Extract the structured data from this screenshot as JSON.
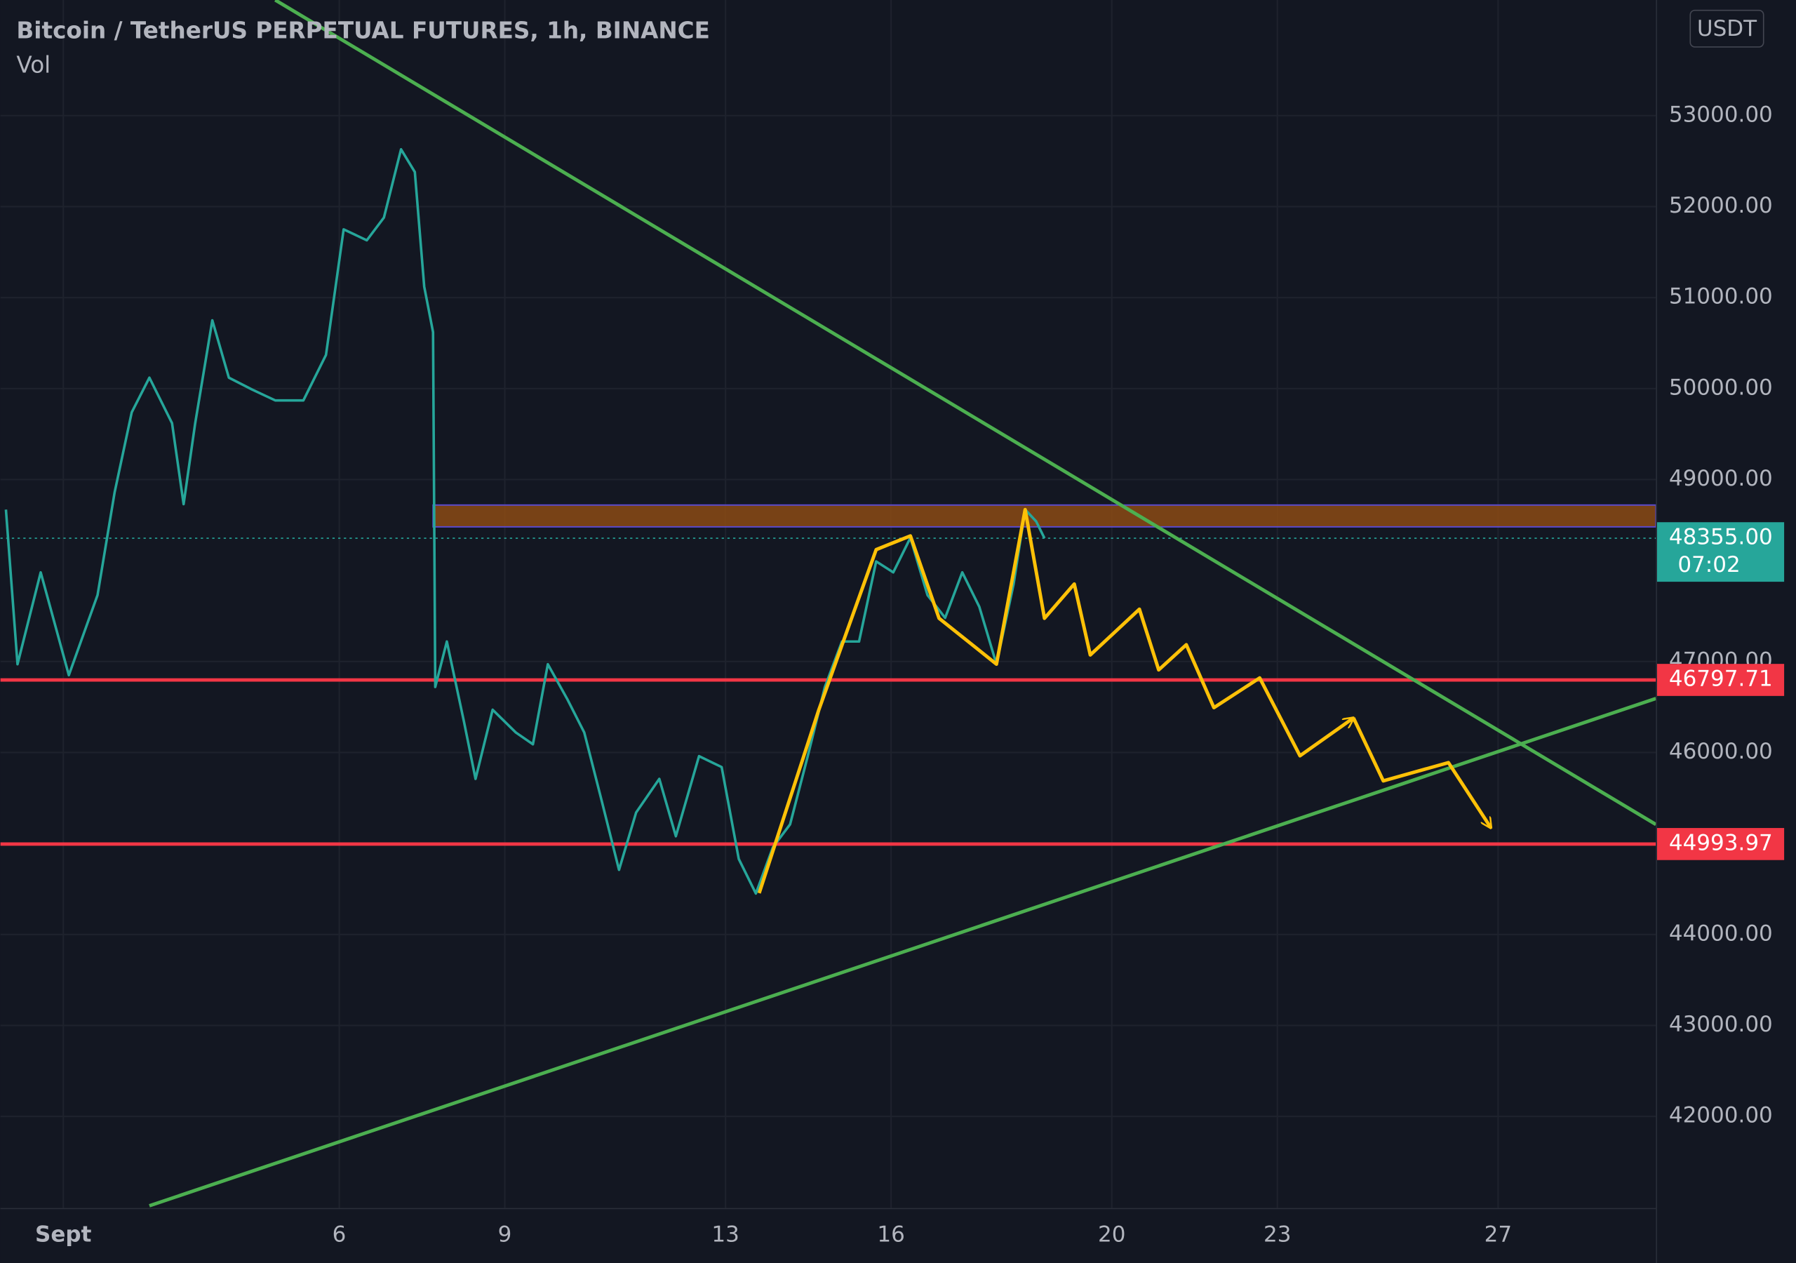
{
  "chart_data": {
    "type": "line",
    "title": "Bitcoin / TetherUS PERPETUAL FUTURES, 1h, BINANCE",
    "indicator": "Vol",
    "currency": "USDT",
    "x": [
      -0.04,
      0.17,
      0.59,
      1.1,
      1.62,
      1.93,
      2.24,
      2.56,
      2.97,
      3.18,
      3.39,
      3.7,
      4.0,
      4.42,
      4.84,
      5.35,
      5.76,
      6.08,
      6.5,
      6.81,
      7.12,
      7.37,
      7.54,
      7.7,
      7.74,
      7.95,
      8.26,
      8.47,
      8.78,
      9.2,
      9.51,
      9.78,
      10.13,
      10.44,
      10.76,
      11.07,
      11.38,
      11.8,
      12.1,
      12.52,
      12.93,
      13.24,
      13.55,
      13.86,
      14.17,
      14.49,
      14.8,
      15.11,
      15.42,
      15.73,
      16.04,
      16.35,
      16.66,
      16.98,
      17.29,
      17.6,
      17.91,
      18.22,
      18.43,
      18.63,
      18.78
    ],
    "values": [
      48670,
      46970,
      47980,
      46850,
      47730,
      48860,
      49740,
      50120,
      49620,
      48730,
      49620,
      50750,
      50120,
      49990,
      49870,
      49870,
      50370,
      51750,
      51630,
      51880,
      52630,
      52380,
      51120,
      50620,
      46720,
      47220,
      46340,
      45710,
      46470,
      46220,
      46090,
      46970,
      46590,
      46220,
      45460,
      44710,
      45340,
      45710,
      45080,
      45960,
      45840,
      44830,
      44450,
      44960,
      45210,
      45960,
      46720,
      47220,
      47220,
      48100,
      47980,
      48360,
      47730,
      47480,
      47980,
      47600,
      46970,
      47850,
      48670,
      48540,
      48355
    ],
    "color": "#26a69a",
    "xlim": [
      -0.14,
      29.86
    ],
    "ylim": [
      40993,
      54271
    ],
    "xticks": [
      {
        "value": 1,
        "label": "Sept"
      },
      6,
      9,
      13,
      16,
      20,
      23,
      27
    ],
    "yticks": [
      {
        "value": 42000,
        "label": "42000.00"
      },
      {
        "value": 43000,
        "label": "43000.00"
      },
      {
        "value": 44000,
        "label": "44000.00"
      },
      {
        "value": 46000,
        "label": "46000.00"
      },
      {
        "value": 47000,
        "label": "47000.00"
      },
      {
        "value": 49000,
        "label": "49000.00"
      },
      {
        "value": 50000,
        "label": "50000.00"
      },
      {
        "value": 51000,
        "label": "51000.00"
      },
      {
        "value": 52000,
        "label": "52000.00"
      },
      {
        "value": 53000,
        "label": "53000.00"
      }
    ],
    "grid": true,
    "levels": [
      {
        "value": 46797.71,
        "color": "#f23645"
      },
      {
        "value": 44993.97,
        "color": "#f23645"
      }
    ],
    "last_price": {
      "value": 48355,
      "label": "48355.00",
      "countdown": "07:02",
      "color": "#26a69a"
    },
    "zone": {
      "x": 7.7,
      "low": 48480,
      "high": 48720,
      "color": "#8b4a14"
    },
    "trendlines": [
      {
        "x": [
          4.84,
          29.86
        ],
        "y": [
          54271,
          45209
        ],
        "color": "#4caf50"
      },
      {
        "x": [
          2.56,
          29.86
        ],
        "y": [
          41018,
          46594
        ],
        "color": "#4caf50"
      }
    ],
    "projections": [
      {
        "x": [
          13.61,
          14.69,
          15.73,
          16.35,
          16.87,
          17.91,
          18.43,
          18.78,
          19.32,
          19.61,
          20.5,
          20.85,
          21.35,
          21.85,
          22.68,
          23.41,
          24.38
        ],
        "y": [
          44454,
          46468,
          48230,
          48381,
          47475,
          46971,
          48670,
          47475,
          47852,
          47072,
          47575,
          46908,
          47185,
          46493,
          46820,
          45964,
          46380
        ],
        "color": "#ffc107"
      },
      {
        "x": [
          24.38,
          24.92,
          26.1,
          26.87
        ],
        "y": [
          46380,
          45688,
          45889,
          45172
        ],
        "color": "#ffc107"
      }
    ]
  }
}
